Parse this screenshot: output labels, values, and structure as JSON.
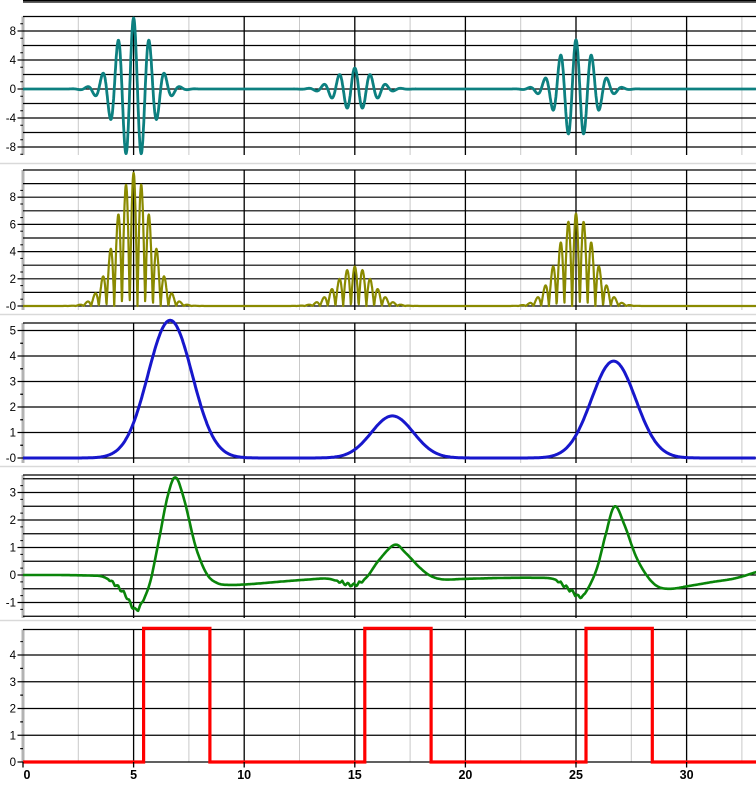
{
  "style": {
    "background": "#FFFFFF",
    "grid_major": "#000000",
    "grid_minor": "#C9C9C9",
    "axis_bar": "#B3B3B3",
    "panel_separator": "#D9D9D9",
    "label_color": "#000000"
  },
  "x_axis": {
    "x_min": 0,
    "x_max": 33.15,
    "major_step": 5,
    "minor_step": 2.5,
    "major_tick_values": [
      0,
      5,
      10,
      15,
      20,
      25,
      30
    ],
    "major_tick_labels": [
      "0",
      "5",
      "10",
      "15",
      "20",
      "25",
      "30"
    ]
  },
  "chart_data": [
    {
      "id": "rf-signal",
      "type": "line",
      "series_name": "rf-burst-signal",
      "color": "#0D8080",
      "stroke_width": 2.8,
      "y_grid_step": 2,
      "y_grid_min": -8,
      "y_grid_max": 12,
      "y_ticks": [
        {
          "value": 8,
          "label": "8"
        },
        {
          "value": 4,
          "label": "4"
        },
        {
          "value": 0,
          "label": "0"
        },
        {
          "value": -4,
          "label": "-4"
        },
        {
          "value": -8,
          "label": "-8"
        }
      ],
      "signal": {
        "kind": "gabor_bursts",
        "sigma": 0.8,
        "period": 0.7,
        "bursts": [
          {
            "center": 5.0,
            "amplitude": 9.8
          },
          {
            "center": 15.0,
            "amplitude": 2.9
          },
          {
            "center": 25.0,
            "amplitude": 6.8
          }
        ]
      }
    },
    {
      "id": "rectified-signal",
      "type": "line",
      "series_name": "rectified-signal",
      "color": "#8A8A00",
      "stroke_width": 2.2,
      "y_grid_step": 1,
      "y_grid_min": 0,
      "y_grid_max": 10,
      "y_ticks": [
        {
          "value": 8,
          "label": "8"
        },
        {
          "value": 6,
          "label": "6"
        },
        {
          "value": 4,
          "label": "4"
        },
        {
          "value": 2,
          "label": "2"
        },
        {
          "value": 0,
          "label": "-0"
        }
      ],
      "signal": {
        "kind": "abs_gabor_bursts",
        "sigma": 0.8,
        "period": 0.7,
        "bursts": [
          {
            "center": 5.0,
            "amplitude": 9.8
          },
          {
            "center": 15.0,
            "amplitude": 2.9
          },
          {
            "center": 25.0,
            "amplitude": 6.8
          }
        ]
      }
    },
    {
      "id": "envelope-signal",
      "type": "line",
      "series_name": "envelope",
      "color": "#1717CC",
      "stroke_width": 3.0,
      "y_grid_step": 1,
      "y_grid_min": 0,
      "y_grid_max": 5,
      "y_ticks": [
        {
          "value": 5,
          "label": "5"
        },
        {
          "value": 4,
          "label": "4"
        },
        {
          "value": 3,
          "label": "3"
        },
        {
          "value": 2,
          "label": "2"
        },
        {
          "value": 1,
          "label": "1"
        },
        {
          "value": 0,
          "label": "-0"
        }
      ],
      "signal": {
        "kind": "gaussian_peaks",
        "peaks": [
          {
            "center": 6.65,
            "amplitude": 5.4,
            "sigma": 1.0
          },
          {
            "center": 16.7,
            "amplitude": 1.65,
            "sigma": 0.95
          },
          {
            "center": 26.7,
            "amplitude": 3.8,
            "sigma": 1.0
          }
        ]
      }
    },
    {
      "id": "detection-signal",
      "type": "line",
      "series_name": "derivative-detection",
      "color": "#0A850A",
      "stroke_width": 2.6,
      "y_grid_step": 0.5,
      "y_grid_min": -1.5,
      "y_grid_max": 3.5,
      "y_ticks": [
        {
          "value": 3,
          "label": "3"
        },
        {
          "value": 2,
          "label": "2"
        },
        {
          "value": 1,
          "label": "1"
        },
        {
          "value": 0,
          "label": "0"
        },
        {
          "value": -1,
          "label": "-1"
        }
      ],
      "signal": {
        "kind": "anchored_curve",
        "anchors": [
          [
            0,
            0
          ],
          [
            1.5,
            0
          ],
          [
            3,
            -0.02
          ],
          [
            3.6,
            -0.06
          ],
          [
            4.1,
            -0.3
          ],
          [
            4.6,
            -0.7
          ],
          [
            5.05,
            -1.25
          ],
          [
            5.35,
            -1.05
          ],
          [
            5.75,
            -0.25
          ],
          [
            6.15,
            1.3
          ],
          [
            6.55,
            2.9
          ],
          [
            6.9,
            3.55
          ],
          [
            7.3,
            2.7
          ],
          [
            7.8,
            1.05
          ],
          [
            8.3,
            0.05
          ],
          [
            8.8,
            -0.3
          ],
          [
            9.4,
            -0.36
          ],
          [
            10.3,
            -0.33
          ],
          [
            11.5,
            -0.25
          ],
          [
            12.8,
            -0.17
          ],
          [
            13.7,
            -0.13
          ],
          [
            14.2,
            -0.22
          ],
          [
            14.8,
            -0.36
          ],
          [
            15.2,
            -0.3
          ],
          [
            15.6,
            -0.02
          ],
          [
            16.1,
            0.55
          ],
          [
            16.8,
            1.1
          ],
          [
            17.3,
            0.8
          ],
          [
            17.9,
            0.3
          ],
          [
            18.4,
            -0.02
          ],
          [
            19,
            -0.16
          ],
          [
            20,
            -0.14
          ],
          [
            21.5,
            -0.11
          ],
          [
            23,
            -0.1
          ],
          [
            23.9,
            -0.13
          ],
          [
            24.35,
            -0.32
          ],
          [
            24.85,
            -0.62
          ],
          [
            25.2,
            -0.8
          ],
          [
            25.5,
            -0.55
          ],
          [
            25.95,
            0.25
          ],
          [
            26.35,
            1.5
          ],
          [
            26.75,
            2.5
          ],
          [
            27.2,
            1.8
          ],
          [
            27.7,
            0.7
          ],
          [
            28.2,
            -0.02
          ],
          [
            28.7,
            -0.42
          ],
          [
            29.3,
            -0.5
          ],
          [
            30.1,
            -0.4
          ],
          [
            31.2,
            -0.25
          ],
          [
            32.2,
            -0.12
          ],
          [
            33.2,
            0.12
          ]
        ],
        "noise_windows": [
          [
            3.8,
            5.55
          ],
          [
            14.1,
            15.5
          ],
          [
            24.05,
            25.45
          ]
        ],
        "noise_amplitude": 0.07,
        "noise_period": 0.26
      }
    },
    {
      "id": "gate-pulses",
      "type": "line",
      "series_name": "threshold-gate",
      "color": "#FF0000",
      "stroke_width": 3.2,
      "y_grid_step": 1,
      "y_grid_min": 0,
      "y_grid_max": 4,
      "y_ticks": [
        {
          "value": 4,
          "label": "4"
        },
        {
          "value": 3,
          "label": "3"
        },
        {
          "value": 2,
          "label": "2"
        },
        {
          "value": 1,
          "label": "1"
        },
        {
          "value": 0,
          "label": "0"
        }
      ],
      "signal": {
        "kind": "pulse_train",
        "baseline": 0,
        "level": 5.0,
        "pulses": [
          {
            "start": 5.45,
            "end": 8.45
          },
          {
            "start": 15.45,
            "end": 18.45
          },
          {
            "start": 25.45,
            "end": 28.45
          }
        ]
      }
    }
  ]
}
